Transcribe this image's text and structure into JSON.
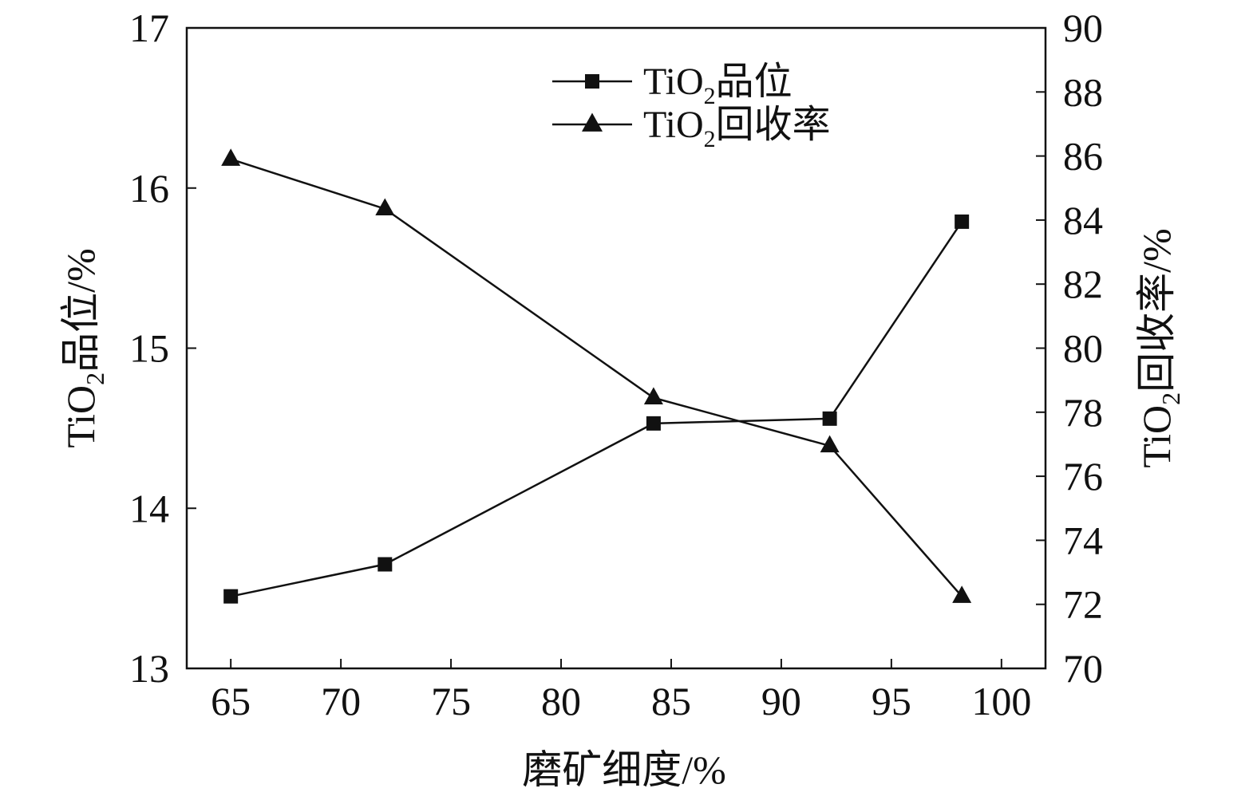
{
  "chart_data": {
    "type": "line",
    "xlabel": "磨矿细度/%",
    "ylabel_left": {
      "main": "TiO",
      "sub": "2",
      "rest": "品位/%"
    },
    "ylabel_right": {
      "main": "TiO",
      "sub": "2",
      "rest": "回收率/%"
    },
    "x_ticks": [
      "65",
      "70",
      "75",
      "80",
      "85",
      "90",
      "95",
      "100"
    ],
    "y_left_ticks": [
      "13",
      "14",
      "15",
      "16",
      "17"
    ],
    "y_right_ticks": [
      "70",
      "72",
      "74",
      "76",
      "78",
      "80",
      "82",
      "84",
      "86",
      "88",
      "90"
    ],
    "xlim": [
      63,
      102
    ],
    "ylim_left": [
      13,
      17
    ],
    "ylim_right": [
      70,
      90
    ],
    "x": [
      65,
      72,
      84.2,
      92.2,
      98.2
    ],
    "series": [
      {
        "name_main": "TiO",
        "name_sub": "2",
        "name_rest": "品位",
        "axis": "left",
        "marker": "square",
        "values": [
          13.45,
          13.65,
          14.53,
          14.56,
          15.79
        ]
      },
      {
        "name_main": "TiO",
        "name_sub": "2",
        "name_rest": "回收率",
        "axis": "right",
        "marker": "triangle",
        "values": [
          85.9,
          84.35,
          78.45,
          76.95,
          72.25
        ]
      }
    ],
    "grid": false,
    "legend_position": "top-center",
    "colors": {
      "line": "#111111",
      "marker": "#111111",
      "axis": "#111111"
    }
  }
}
